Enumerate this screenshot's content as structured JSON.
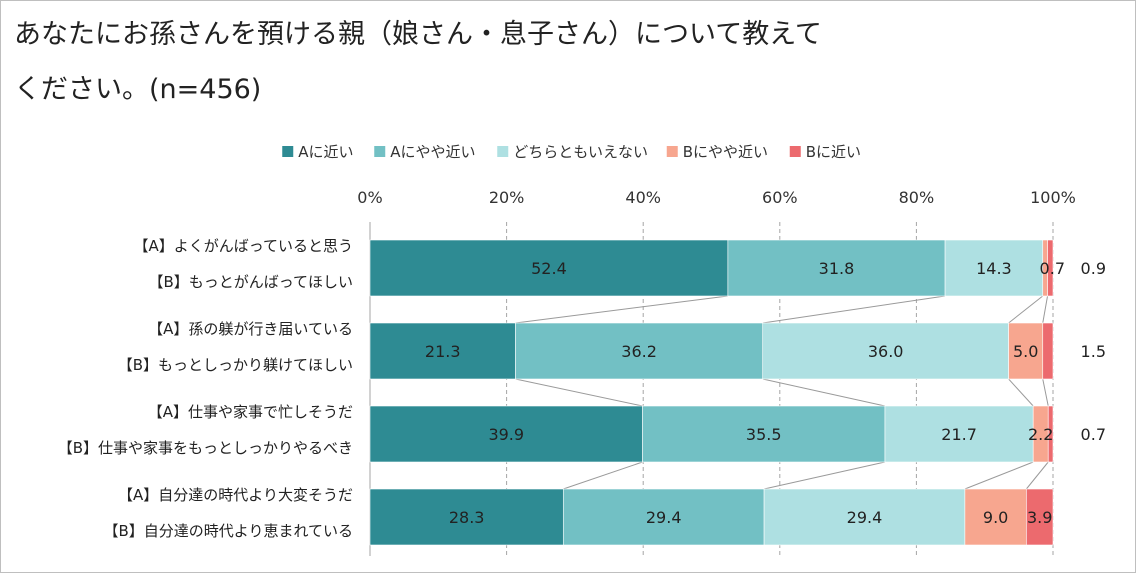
{
  "title_lines": [
    "あなたにお孫さんを預ける親（娘さん・息子さん）について教えて",
    "ください。(n=456)"
  ],
  "chart_data": {
    "type": "bar",
    "stacked": true,
    "orientation": "horizontal",
    "title": "あなたにお孫さんを預ける親（娘さん・息子さん）について教えてください。(n=456)",
    "legend_position": "top",
    "x_ticks": [
      "0%",
      "20%",
      "40%",
      "60%",
      "80%",
      "100%"
    ],
    "xlim": [
      0,
      100
    ],
    "grid": true,
    "categories": [
      [
        "【A】よくがんばっていると思う",
        "【B】もっとがんばってほしい"
      ],
      [
        "【A】孫の躾が行き届いている",
        "【B】もっとしっかり躾けてほしい"
      ],
      [
        "【A】仕事や家事で忙しそうだ",
        "【B】仕事や家事をもっとしっかりやるべき"
      ],
      [
        "【A】自分達の時代より大変そうだ",
        "【B】自分達の時代より恵まれている"
      ]
    ],
    "series": [
      {
        "name": "Aに近い",
        "color": "#2e8b93",
        "values": [
          52.4,
          21.3,
          39.9,
          28.3
        ]
      },
      {
        "name": "Aにやや近い",
        "color": "#72c0c4",
        "values": [
          31.8,
          36.2,
          35.5,
          29.4
        ]
      },
      {
        "name": "どちらともいえない",
        "color": "#aee0e2",
        "values": [
          14.3,
          36.0,
          21.7,
          29.4
        ]
      },
      {
        "name": "Bにやや近い",
        "color": "#f7a68f",
        "values": [
          0.7,
          5.0,
          2.2,
          9.0
        ]
      },
      {
        "name": "Bに近い",
        "color": "#ec6a6e",
        "values": [
          0.9,
          1.5,
          0.7,
          3.9
        ]
      }
    ],
    "label_text": [
      [
        "52.4",
        "31.8",
        "14.3",
        "0.7",
        "0.9"
      ],
      [
        "21.3",
        "36.2",
        "36.0",
        "5.0",
        "1.5"
      ],
      [
        "39.9",
        "35.5",
        "21.7",
        "2.2",
        "0.7"
      ],
      [
        "28.3",
        "29.4",
        "29.4",
        "9.0",
        "3.9"
      ]
    ],
    "outside_labels": [
      [
        false,
        false,
        false,
        true,
        true
      ],
      [
        false,
        false,
        false,
        false,
        true
      ],
      [
        false,
        false,
        false,
        false,
        true
      ],
      [
        false,
        false,
        false,
        false,
        false
      ]
    ]
  }
}
